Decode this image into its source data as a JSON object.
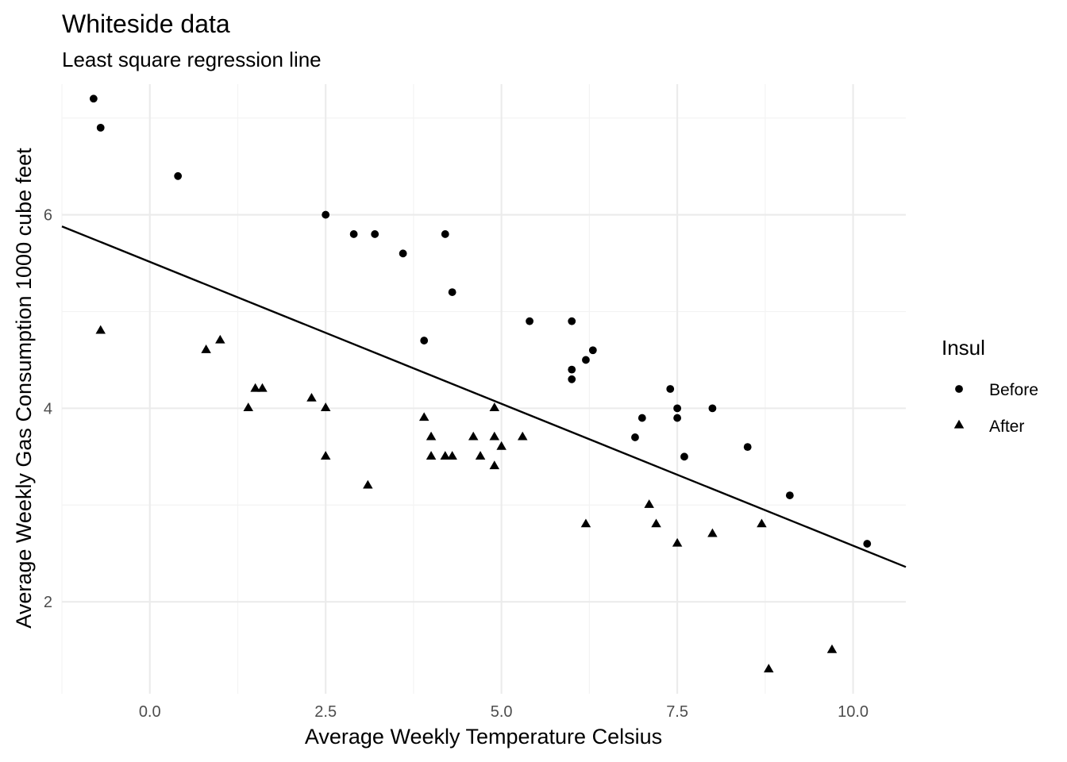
{
  "chart_data": {
    "type": "scatter",
    "title": "Whiteside data",
    "subtitle": "Least square regression line",
    "xlabel": "Average Weekly Temperature Celsius",
    "ylabel": "Average Weekly Gas Consumption 1000 cube feet",
    "xlim": [
      -1.25,
      10.75
    ],
    "ylim": [
      1.05,
      7.35
    ],
    "x_ticks": [
      0.0,
      2.5,
      5.0,
      7.5,
      10.0
    ],
    "x_tick_labels": [
      "0.0",
      "2.5",
      "5.0",
      "7.5",
      "10.0"
    ],
    "y_ticks": [
      2,
      4,
      6
    ],
    "y_tick_labels": [
      "2",
      "4",
      "6"
    ],
    "grid": true,
    "legend": {
      "title": "Insul",
      "position": "right",
      "entries": [
        "Before",
        "After"
      ]
    },
    "regression_line": {
      "x": [
        -1.25,
        10.75
      ],
      "y": [
        5.88,
        2.36
      ]
    },
    "series": [
      {
        "name": "Before",
        "marker": "circle",
        "color": "#000000",
        "points": [
          [
            -0.8,
            7.2
          ],
          [
            -0.7,
            6.9
          ],
          [
            0.4,
            6.4
          ],
          [
            2.5,
            6.0
          ],
          [
            2.9,
            5.8
          ],
          [
            3.2,
            5.8
          ],
          [
            3.6,
            5.6
          ],
          [
            3.9,
            4.7
          ],
          [
            4.2,
            5.8
          ],
          [
            4.3,
            5.2
          ],
          [
            5.4,
            4.9
          ],
          [
            6.0,
            4.9
          ],
          [
            6.0,
            4.4
          ],
          [
            6.0,
            4.3
          ],
          [
            6.2,
            4.5
          ],
          [
            6.3,
            4.6
          ],
          [
            6.9,
            3.7
          ],
          [
            7.0,
            3.9
          ],
          [
            7.4,
            4.2
          ],
          [
            7.5,
            4.0
          ],
          [
            7.5,
            3.9
          ],
          [
            7.6,
            3.5
          ],
          [
            8.0,
            4.0
          ],
          [
            8.5,
            3.6
          ],
          [
            9.1,
            3.1
          ],
          [
            10.2,
            2.6
          ]
        ]
      },
      {
        "name": "After",
        "marker": "triangle",
        "color": "#000000",
        "points": [
          [
            -0.7,
            4.8
          ],
          [
            0.8,
            4.6
          ],
          [
            1.0,
            4.7
          ],
          [
            1.4,
            4.0
          ],
          [
            1.5,
            4.2
          ],
          [
            1.6,
            4.2
          ],
          [
            2.3,
            4.1
          ],
          [
            2.5,
            4.0
          ],
          [
            2.5,
            3.5
          ],
          [
            3.1,
            3.2
          ],
          [
            3.9,
            3.9
          ],
          [
            4.0,
            3.7
          ],
          [
            4.0,
            3.5
          ],
          [
            4.2,
            3.5
          ],
          [
            4.3,
            3.5
          ],
          [
            4.6,
            3.7
          ],
          [
            4.7,
            3.5
          ],
          [
            4.9,
            3.4
          ],
          [
            4.9,
            3.7
          ],
          [
            4.9,
            4.0
          ],
          [
            5.0,
            3.6
          ],
          [
            5.3,
            3.7
          ],
          [
            6.2,
            2.8
          ],
          [
            7.1,
            3.0
          ],
          [
            7.2,
            2.8
          ],
          [
            7.5,
            2.6
          ],
          [
            8.0,
            2.7
          ],
          [
            8.7,
            2.8
          ],
          [
            8.8,
            1.3
          ],
          [
            9.7,
            1.5
          ]
        ]
      }
    ]
  }
}
